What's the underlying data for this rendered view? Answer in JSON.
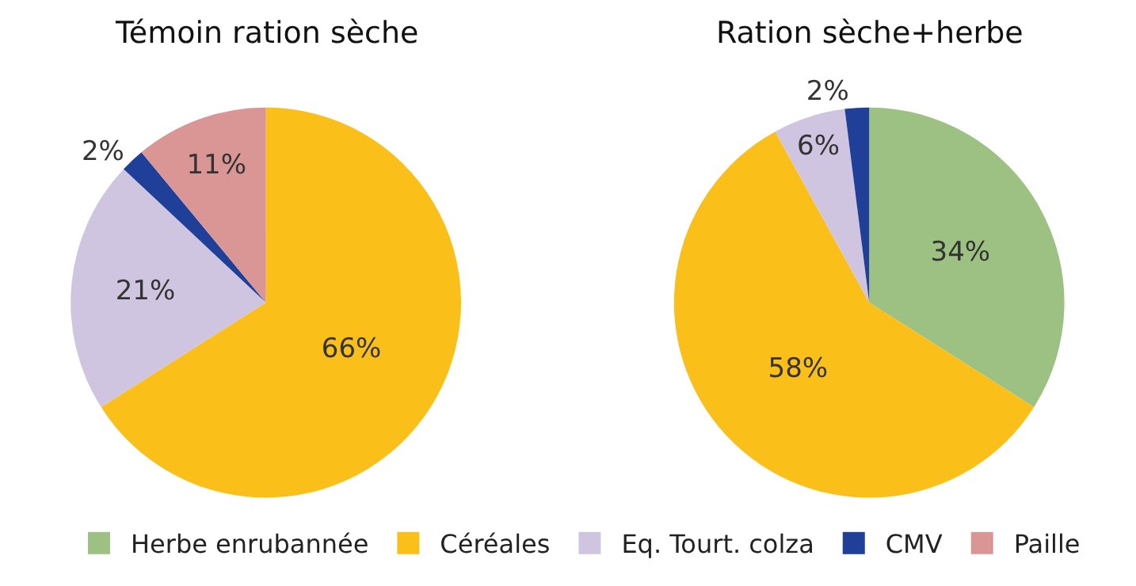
{
  "chart_data": [
    {
      "type": "pie",
      "title": "Témoin ration sèche",
      "categories": [
        "Herbe enrubannée",
        "Céréales",
        "Eq. Tourt. colza",
        "CMV",
        "Paille"
      ],
      "values": [
        null,
        66,
        21,
        2,
        11
      ],
      "colors": [
        "#9dc183",
        "#fbbf1a",
        "#cfc5e0",
        "#1f3f99",
        "#d99694"
      ],
      "value_labels": [
        null,
        "66%",
        "21%",
        "2%",
        "11%"
      ],
      "legend": "bottom"
    },
    {
      "type": "pie",
      "title": "Ration sèche+herbe",
      "categories": [
        null,
        null,
        null,
        null
      ],
      "values": [
        34,
        58,
        6,
        2
      ],
      "colors": [
        "#9dc183",
        "#fbbf1a",
        "#cfc5e0",
        "#1f3f99"
      ],
      "value_labels": [
        "34%",
        "58%",
        "6%",
        "2%"
      ]
    }
  ]
}
